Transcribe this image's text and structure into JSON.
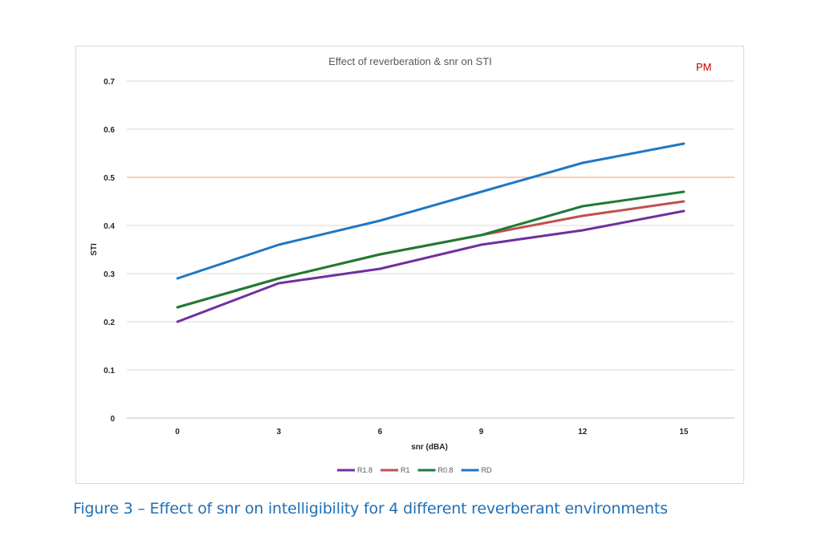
{
  "chart_data": {
    "type": "line",
    "title": "Effect of reverberation & snr on STI",
    "corner_mark": "PM",
    "xlabel": "snr (dBA)",
    "ylabel": "STI",
    "categories": [
      "0",
      "3",
      "6",
      "9",
      "12",
      "15"
    ],
    "ylim": [
      0,
      0.7
    ],
    "yticks": [
      "0",
      "0.1",
      "0.2",
      "0.3",
      "0.4",
      "0.5",
      "0.6",
      "0.7"
    ],
    "grid": true,
    "legend_position": "bottom",
    "reference_line": {
      "y": 0.5,
      "color": "#f4b183"
    },
    "series": [
      {
        "name": "R1.8",
        "color": "#7030a0",
        "values": [
          0.2,
          0.28,
          0.31,
          0.36,
          0.39,
          0.43
        ]
      },
      {
        "name": "R1",
        "color": "#c0504d",
        "values": [
          0.23,
          0.29,
          0.34,
          0.38,
          0.42,
          0.45
        ]
      },
      {
        "name": "R0.8",
        "color": "#1e7b34",
        "values": [
          0.23,
          0.29,
          0.34,
          0.38,
          0.44,
          0.47
        ]
      },
      {
        "name": "RD",
        "color": "#1f77c4",
        "values": [
          0.29,
          0.36,
          0.41,
          0.47,
          0.53,
          0.57
        ]
      }
    ]
  },
  "caption": "Figure 3 – Effect of snr on intelligibility for 4 different reverberant environments"
}
